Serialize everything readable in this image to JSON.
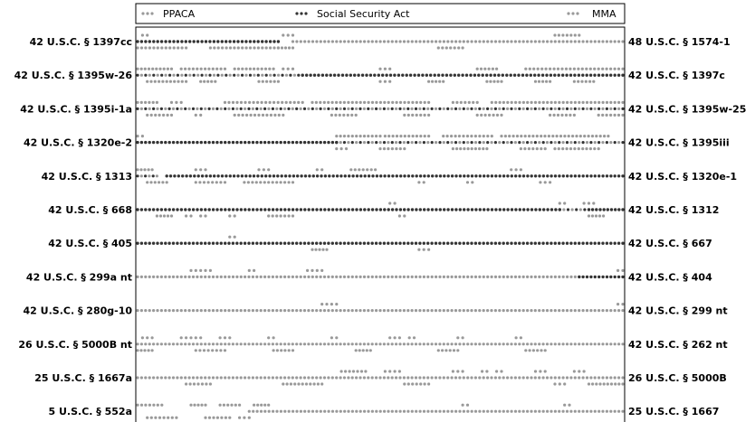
{
  "chart_data": {
    "type": "scatter",
    "legend": {
      "placement": "top",
      "entries": [
        {
          "name": "PPACA",
          "color": "#999999"
        },
        {
          "name": "Social Security Act",
          "color": "#333333"
        },
        {
          "name": "MMA",
          "color": "#999999"
        }
      ]
    },
    "rows": [
      {
        "left": "42 U.S.C. § 1397cc",
        "right": "48 U.S.C. § 1574-1",
        "segments": [
          [
            0,
            0.29,
            1,
            "above"
          ],
          [
            0.29,
            0.32,
            0,
            "below"
          ],
          [
            0.32,
            1.0,
            0,
            "above"
          ],
          [
            0.01,
            0.02,
            0,
            "up"
          ],
          [
            0.3,
            0.32,
            0,
            "up"
          ],
          [
            0.86,
            0.91,
            0,
            "up"
          ],
          [
            0.0,
            0.1,
            0,
            "down"
          ],
          [
            0.15,
            0.29,
            0,
            "down"
          ],
          [
            0.62,
            0.67,
            0,
            "down"
          ]
        ]
      },
      {
        "left": "42 U.S.C. § 1395w-26",
        "right": "42 U.S.C. § 1397c",
        "segments": [
          [
            0,
            0.34,
            2,
            "mid"
          ],
          [
            0.34,
            1.0,
            1,
            "mid"
          ],
          [
            0.0,
            0.07,
            0,
            "up"
          ],
          [
            0.09,
            0.18,
            0,
            "up"
          ],
          [
            0.2,
            0.28,
            0,
            "up"
          ],
          [
            0.3,
            0.32,
            0,
            "up"
          ],
          [
            0.5,
            0.52,
            0,
            "up"
          ],
          [
            0.7,
            0.74,
            0,
            "up"
          ],
          [
            0.8,
            1.0,
            0,
            "up"
          ],
          [
            0.02,
            0.1,
            0,
            "down"
          ],
          [
            0.13,
            0.16,
            0,
            "down"
          ],
          [
            0.25,
            0.29,
            0,
            "down"
          ],
          [
            0.5,
            0.52,
            0,
            "down"
          ],
          [
            0.6,
            0.63,
            0,
            "down"
          ],
          [
            0.72,
            0.75,
            0,
            "down"
          ],
          [
            0.82,
            0.85,
            0,
            "down"
          ],
          [
            0.9,
            0.94,
            0,
            "down"
          ]
        ]
      },
      {
        "left": "42 U.S.C. § 1395i-1a",
        "right": "42 U.S.C. § 1395w-25",
        "segments": [
          [
            0,
            1.0,
            2,
            "mid"
          ],
          [
            0.0,
            0.04,
            0,
            "up"
          ],
          [
            0.07,
            0.09,
            0,
            "up"
          ],
          [
            0.18,
            0.34,
            0,
            "up"
          ],
          [
            0.36,
            0.6,
            0,
            "up"
          ],
          [
            0.65,
            0.7,
            0,
            "up"
          ],
          [
            0.73,
            1.0,
            0,
            "up"
          ],
          [
            0.02,
            0.07,
            0,
            "down"
          ],
          [
            0.12,
            0.13,
            0,
            "down"
          ],
          [
            0.2,
            0.3,
            0,
            "down"
          ],
          [
            0.4,
            0.45,
            0,
            "down"
          ],
          [
            0.55,
            0.6,
            0,
            "down"
          ],
          [
            0.7,
            0.75,
            0,
            "down"
          ],
          [
            0.85,
            0.9,
            0,
            "down"
          ],
          [
            0.95,
            1.0,
            0,
            "down"
          ]
        ]
      },
      {
        "left": "42 U.S.C. § 1320e-2",
        "right": "42 U.S.C. § 1395iii",
        "segments": [
          [
            0,
            0.41,
            1,
            "mid"
          ],
          [
            0.41,
            1.0,
            2,
            "mid"
          ],
          [
            0.0,
            0.01,
            0,
            "up"
          ],
          [
            0.41,
            0.5,
            0,
            "up"
          ],
          [
            0.51,
            0.6,
            0,
            "up"
          ],
          [
            0.63,
            0.73,
            0,
            "up"
          ],
          [
            0.75,
            0.97,
            0,
            "up"
          ],
          [
            0.41,
            0.43,
            0,
            "down"
          ],
          [
            0.5,
            0.55,
            0,
            "down"
          ],
          [
            0.65,
            0.72,
            0,
            "down"
          ],
          [
            0.79,
            0.84,
            0,
            "down"
          ],
          [
            0.86,
            0.95,
            0,
            "down"
          ]
        ]
      },
      {
        "left": "42 U.S.C. § 1313",
        "right": "42 U.S.C. § 1320e-1",
        "segments": [
          [
            0,
            0.04,
            2,
            "mid"
          ],
          [
            0.06,
            1.0,
            1,
            "mid"
          ],
          [
            0.0,
            0.03,
            0,
            "up"
          ],
          [
            0.12,
            0.14,
            0,
            "up"
          ],
          [
            0.25,
            0.27,
            0,
            "up"
          ],
          [
            0.37,
            0.38,
            0,
            "up"
          ],
          [
            0.44,
            0.49,
            0,
            "up"
          ],
          [
            0.77,
            0.79,
            0,
            "up"
          ],
          [
            0.02,
            0.06,
            0,
            "down"
          ],
          [
            0.12,
            0.18,
            0,
            "down"
          ],
          [
            0.22,
            0.32,
            0,
            "down"
          ],
          [
            0.58,
            0.59,
            0,
            "down"
          ],
          [
            0.68,
            0.69,
            0,
            "down"
          ],
          [
            0.83,
            0.85,
            0,
            "down"
          ]
        ]
      },
      {
        "left": "42 U.S.C. § 668",
        "right": "42 U.S.C. § 1312",
        "segments": [
          [
            0,
            0.87,
            1,
            "mid"
          ],
          [
            0.87,
            0.93,
            2,
            "mid"
          ],
          [
            0.93,
            1.0,
            1,
            "mid"
          ],
          [
            0.52,
            0.53,
            0,
            "up"
          ],
          [
            0.87,
            0.88,
            0,
            "up"
          ],
          [
            0.92,
            0.94,
            0,
            "up"
          ],
          [
            0.04,
            0.07,
            0,
            "down"
          ],
          [
            0.1,
            0.11,
            0,
            "down"
          ],
          [
            0.13,
            0.14,
            0,
            "down"
          ],
          [
            0.19,
            0.2,
            0,
            "down"
          ],
          [
            0.27,
            0.32,
            0,
            "down"
          ],
          [
            0.54,
            0.55,
            0,
            "down"
          ],
          [
            0.93,
            0.96,
            0,
            "down"
          ]
        ]
      },
      {
        "left": "42 U.S.C. § 405",
        "right": "42 U.S.C. § 667",
        "segments": [
          [
            0,
            1.0,
            1,
            "mid"
          ],
          [
            0.19,
            0.2,
            0,
            "up"
          ],
          [
            0.36,
            0.39,
            0,
            "down"
          ],
          [
            0.58,
            0.6,
            0,
            "down"
          ]
        ]
      },
      {
        "left": "42 U.S.C. § 299a nt",
        "right": "42 U.S.C. § 404",
        "segments": [
          [
            0,
            0.91,
            0,
            "mid"
          ],
          [
            0.91,
            1.0,
            1,
            "mid"
          ],
          [
            0.11,
            0.13,
            0,
            "up"
          ],
          [
            0.14,
            0.15,
            0,
            "up"
          ],
          [
            0.23,
            0.24,
            0,
            "up"
          ],
          [
            0.35,
            0.36,
            0,
            "up"
          ],
          [
            0.37,
            0.38,
            0,
            "up"
          ],
          [
            0.99,
            1.0,
            0,
            "up"
          ]
        ]
      },
      {
        "left": "42 U.S.C. § 280g-10",
        "right": "42 U.S.C. § 299 nt",
        "segments": [
          [
            0,
            1.0,
            0,
            "mid"
          ],
          [
            0.38,
            0.39,
            0,
            "up"
          ],
          [
            0.4,
            0.41,
            0,
            "up"
          ],
          [
            0.99,
            1.0,
            0,
            "up"
          ]
        ]
      },
      {
        "left": "26 U.S.C. § 5000B nt",
        "right": "42 U.S.C. § 262 nt",
        "segments": [
          [
            0,
            1.0,
            0,
            "mid"
          ],
          [
            0.01,
            0.03,
            0,
            "up"
          ],
          [
            0.09,
            0.1,
            0,
            "up"
          ],
          [
            0.11,
            0.13,
            0,
            "up"
          ],
          [
            0.17,
            0.19,
            0,
            "up"
          ],
          [
            0.27,
            0.28,
            0,
            "up"
          ],
          [
            0.4,
            0.41,
            0,
            "up"
          ],
          [
            0.52,
            0.54,
            0,
            "up"
          ],
          [
            0.56,
            0.57,
            0,
            "up"
          ],
          [
            0.66,
            0.67,
            0,
            "up"
          ],
          [
            0.78,
            0.79,
            0,
            "up"
          ],
          [
            0.0,
            0.03,
            0,
            "down"
          ],
          [
            0.12,
            0.18,
            0,
            "down"
          ],
          [
            0.28,
            0.32,
            0,
            "down"
          ],
          [
            0.45,
            0.48,
            0,
            "down"
          ],
          [
            0.62,
            0.66,
            0,
            "down"
          ],
          [
            0.8,
            0.84,
            0,
            "down"
          ]
        ]
      },
      {
        "left": "25 U.S.C. § 1667a",
        "right": "26 U.S.C. § 5000B",
        "segments": [
          [
            0,
            1.0,
            0,
            "mid"
          ],
          [
            0.42,
            0.47,
            0,
            "up"
          ],
          [
            0.51,
            0.52,
            0,
            "up"
          ],
          [
            0.53,
            0.54,
            0,
            "up"
          ],
          [
            0.65,
            0.67,
            0,
            "up"
          ],
          [
            0.71,
            0.72,
            0,
            "up"
          ],
          [
            0.74,
            0.75,
            0,
            "up"
          ],
          [
            0.82,
            0.84,
            0,
            "up"
          ],
          [
            0.9,
            0.92,
            0,
            "up"
          ],
          [
            0.1,
            0.15,
            0,
            "down"
          ],
          [
            0.3,
            0.38,
            0,
            "down"
          ],
          [
            0.55,
            0.6,
            0,
            "down"
          ],
          [
            0.86,
            0.88,
            0,
            "down"
          ],
          [
            0.93,
            1.0,
            0,
            "down"
          ]
        ]
      },
      {
        "left": "5 U.S.C. § 552a",
        "right": "25 U.S.C. § 1667",
        "segments": [
          [
            0.23,
            1.0,
            0,
            "mid"
          ],
          [
            0.0,
            0.05,
            0,
            "up"
          ],
          [
            0.11,
            0.14,
            0,
            "up"
          ],
          [
            0.17,
            0.21,
            0,
            "up"
          ],
          [
            0.24,
            0.27,
            0,
            "up"
          ],
          [
            0.67,
            0.68,
            0,
            "up"
          ],
          [
            0.88,
            0.89,
            0,
            "up"
          ],
          [
            0.02,
            0.08,
            0,
            "down"
          ],
          [
            0.14,
            0.19,
            0,
            "down"
          ],
          [
            0.21,
            0.23,
            0,
            "down"
          ]
        ]
      }
    ]
  }
}
